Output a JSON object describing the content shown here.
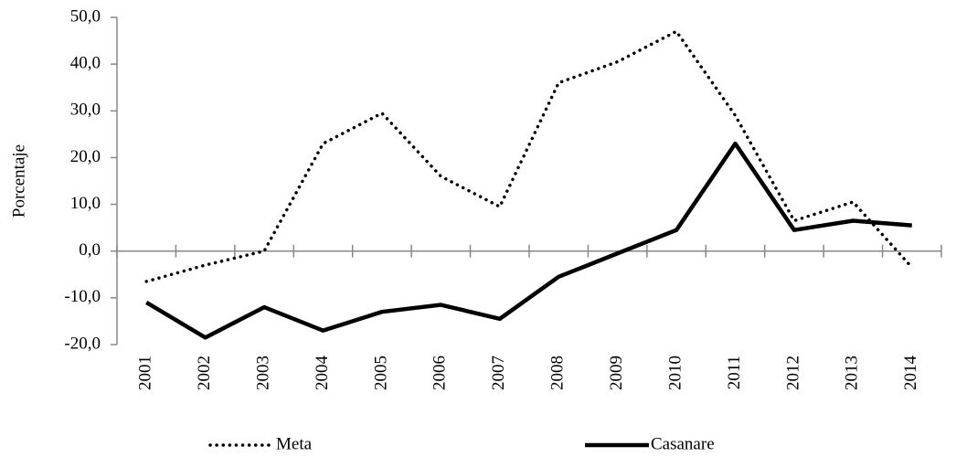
{
  "chart_data": {
    "type": "line",
    "y_label": "Porcentaje",
    "categories": [
      "2001",
      "2002",
      "2003",
      "2004",
      "2005",
      "2006",
      "2007",
      "2008",
      "2009",
      "2010",
      "2011",
      "2012",
      "2013",
      "2014"
    ],
    "series": [
      {
        "name": "Meta",
        "color": "#000000",
        "style": "dotted",
        "values": [
          -6.5,
          -3,
          0,
          23,
          29.5,
          16,
          9.5,
          36,
          40.5,
          47,
          29,
          6.5,
          10.5,
          -3.5
        ]
      },
      {
        "name": "Casanare",
        "color": "#000000",
        "style": "solid",
        "values": [
          -11,
          -18.5,
          -12,
          -17,
          -13,
          -11.5,
          -14.5,
          -5.5,
          -0.5,
          4.5,
          23,
          4.5,
          6.5,
          5.5
        ]
      }
    ],
    "ylim": [
      -20,
      50
    ],
    "yticks": [
      {
        "value": -20,
        "label": "-20,0"
      },
      {
        "value": -10,
        "label": "-10,0"
      },
      {
        "value": 0,
        "label": "0,0"
      },
      {
        "value": 10,
        "label": "10,0"
      },
      {
        "value": 20,
        "label": "20,0"
      },
      {
        "value": 30,
        "label": "30,0"
      },
      {
        "value": 40,
        "label": "40,0"
      },
      {
        "value": 50,
        "label": "50,0"
      }
    ],
    "grid": false,
    "legend": "bottom"
  }
}
